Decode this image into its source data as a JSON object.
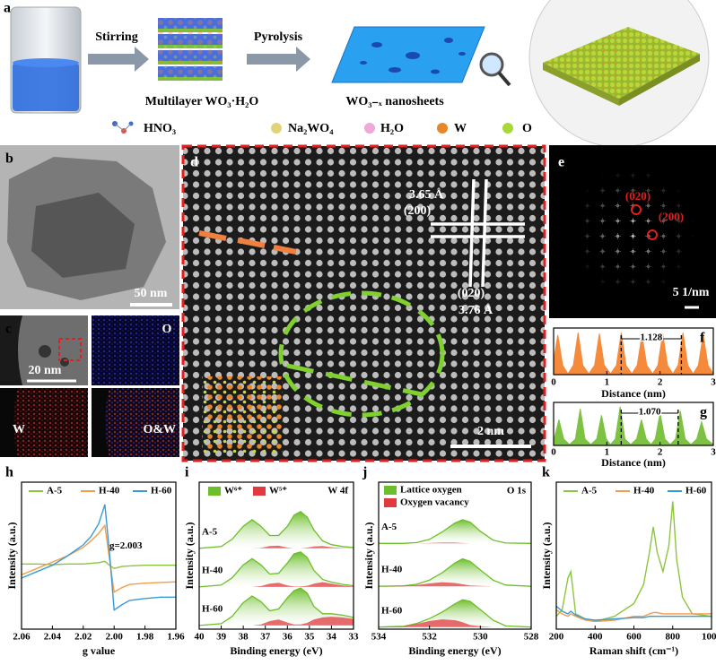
{
  "schematic": {
    "label": "a",
    "step1": "Stirring",
    "step2": "Pyrolysis",
    "product1": "Multilayer WO₃·H₂O",
    "product2": "WO₃₋ₓ nanosheets",
    "legend": [
      "HNO₃",
      "Na₂WO₄",
      "H₂O",
      "W",
      "O"
    ]
  },
  "tem": {
    "label": "b",
    "scale": "50 nm"
  },
  "mapping": {
    "label": "c",
    "o": "O",
    "scale": "20 nm",
    "w": "W",
    "ow": "O&W"
  },
  "hrtem": {
    "label": "d",
    "d200": "3.65 Å",
    "h200": "(200)",
    "h020": "(020)",
    "d020": "3.76 Å",
    "scale": "2 nm"
  },
  "fft": {
    "label": "e",
    "s020": "(020)",
    "s200": "(200)",
    "scale": "5 1/nm"
  },
  "chart_data": [
    {
      "label": "f",
      "type": "area",
      "xlabel": "Distance (nm)",
      "xlim": [
        0,
        3
      ],
      "xticks": [
        0,
        1,
        2,
        3
      ],
      "ylim": [
        0,
        1
      ],
      "x": [
        0,
        0.08,
        0.17,
        0.27,
        0.37,
        0.46,
        0.55,
        0.66,
        0.77,
        0.86,
        0.95,
        1.07,
        1.18,
        1.27,
        1.36,
        1.47,
        1.57,
        1.66,
        1.75,
        1.86,
        1.96,
        2.05,
        2.14,
        2.24,
        2.34,
        2.43,
        2.52,
        2.62,
        2.72,
        2.81,
        2.9,
        3.0
      ],
      "series": [
        {
          "color": "#f58a3c",
          "values": [
            0.3,
            0.85,
            0.2,
            0.02,
            0.2,
            0.9,
            0.2,
            0.02,
            0.2,
            0.88,
            0.2,
            0.02,
            0.2,
            0.9,
            0.2,
            0.02,
            0.2,
            0.85,
            0.2,
            0.02,
            0.2,
            0.88,
            0.2,
            0.02,
            0.2,
            0.9,
            0.2,
            0.02,
            0.2,
            0.86,
            0.2,
            0.02
          ]
        }
      ],
      "marker": {
        "from": 1.27,
        "to": 2.4,
        "distance": 1.128
      }
    },
    {
      "label": "g",
      "type": "area",
      "xlabel": "Distance (nm)",
      "xlim": [
        0,
        3
      ],
      "xticks": [
        0,
        1,
        2,
        3
      ],
      "ylim": [
        0,
        1
      ],
      "x": [
        0,
        0.1,
        0.19,
        0.3,
        0.41,
        0.5,
        0.59,
        0.7,
        0.81,
        0.9,
        0.99,
        1.07,
        1.16,
        1.25,
        1.34,
        1.45,
        1.56,
        1.65,
        1.74,
        1.83,
        1.91,
        2.0,
        2.09,
        2.19,
        2.29,
        2.38,
        2.47,
        2.58,
        2.69,
        2.78,
        2.87,
        3.0
      ],
      "series": [
        {
          "color": "#7dc242",
          "values": [
            0.1,
            0.6,
            0.15,
            0.02,
            0.15,
            0.85,
            0.15,
            0.02,
            0.15,
            0.7,
            0.15,
            0.02,
            0.15,
            0.9,
            0.15,
            0.02,
            0.15,
            0.6,
            0.15,
            0.02,
            0.15,
            0.75,
            0.15,
            0.02,
            0.15,
            0.8,
            0.15,
            0.02,
            0.15,
            0.55,
            0.15,
            0.02
          ]
        }
      ],
      "marker": {
        "from": 1.27,
        "to": 2.34,
        "distance": {
          "value": 1.07,
          "label": "1.070"
        }
      }
    },
    {
      "label": "h",
      "type": "line",
      "xlabel": "g value",
      "ylabel": "Intensity (a.u.)",
      "xlim": [
        2.06,
        1.96
      ],
      "xticks": [
        2.06,
        2.04,
        2.02,
        {
          "value": 2,
          "label": "2.00"
        },
        1.98,
        1.96
      ],
      "ylim": [
        -1,
        1.3
      ],
      "annotation": "g=2.003",
      "x": [
        2.06,
        2.05,
        2.04,
        2.03,
        2.02,
        2.015,
        2.01,
        2.006,
        2.003,
        2.0,
        1.995,
        1.99,
        1.98,
        1.97,
        1.96
      ],
      "series": [
        {
          "name": "A-5",
          "color": "#8cc63f",
          "values": [
            0.02,
            0.02,
            0.01,
            0.02,
            0.02,
            0.03,
            0.04,
            0.06,
            0,
            -0.05,
            -0.02,
            -0.01,
            0,
            0,
            0
          ]
        },
        {
          "name": "H-40",
          "color": "#f39c4a",
          "values": [
            -0.15,
            -0.05,
            0.05,
            0.15,
            0.28,
            0.38,
            0.5,
            0.62,
            0.1,
            -0.42,
            -0.35,
            -0.3,
            -0.28,
            -0.27,
            -0.26
          ]
        },
        {
          "name": "H-60",
          "color": "#3a9ad9",
          "values": [
            -0.2,
            -0.1,
            0,
            0.15,
            0.32,
            0.45,
            0.65,
            0.95,
            0.2,
            -0.7,
            -0.62,
            -0.55,
            -0.52,
            -0.5,
            -0.5
          ]
        }
      ]
    },
    {
      "label": "i",
      "type": "fit",
      "xlabel": "Binding energy (eV)",
      "ylabel": "Intensity (a.u.)",
      "xlim": [
        40,
        33
      ],
      "xticks": [
        40,
        39,
        38,
        37,
        36,
        35,
        34,
        33
      ],
      "ylim": [
        0,
        4
      ],
      "annotation": "W 4f",
      "legend": [
        {
          "name": "W⁶⁺",
          "color": "#6cbf2a"
        },
        {
          "name": "W⁵⁺",
          "color": "#e0393e"
        }
      ],
      "x": [
        40,
        39,
        38.5,
        38,
        37.6,
        37.2,
        36.8,
        36.4,
        36,
        35.7,
        35.4,
        35.1,
        34.8,
        34.4,
        34,
        33.5,
        33
      ],
      "samples": [
        {
          "name": "A-5",
          "values": [
            2.2,
            2.25,
            2.45,
            2.8,
            2.98,
            2.8,
            2.55,
            2.55,
            2.8,
            3.1,
            3.2,
            3.05,
            2.7,
            2.4,
            2.3,
            2.25,
            2.22
          ],
          "minor": [
            2.2,
            2.2,
            2.2,
            2.2,
            2.2,
            2.21,
            2.26,
            2.27,
            2.22,
            2.2,
            2.2,
            2.22,
            2.25,
            2.26,
            2.23,
            2.21,
            2.2
          ]
        },
        {
          "name": "H-40",
          "values": [
            1.15,
            1.2,
            1.4,
            1.75,
            1.92,
            1.75,
            1.5,
            1.52,
            1.8,
            2.05,
            2.1,
            1.95,
            1.6,
            1.35,
            1.28,
            1.22,
            1.18
          ],
          "minor": [
            1.15,
            1.15,
            1.15,
            1.15,
            1.15,
            1.17,
            1.24,
            1.26,
            1.19,
            1.16,
            1.16,
            1.18,
            1.24,
            1.28,
            1.24,
            1.19,
            1.16
          ]
        },
        {
          "name": "H-60",
          "values": [
            0.1,
            0.15,
            0.35,
            0.72,
            0.9,
            0.75,
            0.5,
            0.55,
            0.85,
            1.05,
            1.12,
            0.98,
            0.62,
            0.42,
            0.42,
            0.38,
            0.32
          ],
          "minor": [
            0.1,
            0.1,
            0.1,
            0.1,
            0.1,
            0.13,
            0.22,
            0.26,
            0.18,
            0.13,
            0.13,
            0.17,
            0.26,
            0.32,
            0.34,
            0.32,
            0.28
          ]
        }
      ]
    },
    {
      "label": "j",
      "type": "fit",
      "xlabel": "Binding energy (eV)",
      "ylabel": "Intensity (a.u.)",
      "xlim": [
        534,
        528
      ],
      "xticks": [
        534,
        532,
        530,
        528
      ],
      "ylim": [
        0,
        3.6
      ],
      "annotation": "O 1s",
      "legend": [
        {
          "name": "Lattice oxygen",
          "color": "#6cbf2a"
        },
        {
          "name": "Oxygen vacancy",
          "color": "#e0393e"
        }
      ],
      "x": [
        534,
        533,
        532.5,
        532,
        531.5,
        531,
        530.7,
        530.4,
        530,
        529.5,
        529,
        528
      ],
      "samples": [
        {
          "name": "A-5",
          "values": [
            2.1,
            2.1,
            2.12,
            2.2,
            2.38,
            2.6,
            2.68,
            2.62,
            2.4,
            2.18,
            2.11,
            2.1
          ],
          "minor": [
            2.1,
            2.1,
            2.1,
            2.11,
            2.12,
            2.12,
            2.11,
            2.1,
            2.1,
            2.1,
            2.1,
            2.1
          ]
        },
        {
          "name": "H-40",
          "values": [
            1.05,
            1.06,
            1.1,
            1.2,
            1.38,
            1.62,
            1.72,
            1.66,
            1.45,
            1.2,
            1.08,
            1.05
          ],
          "minor": [
            1.05,
            1.06,
            1.08,
            1.12,
            1.15,
            1.13,
            1.1,
            1.07,
            1.06,
            1.05,
            1.05,
            1.05
          ]
        },
        {
          "name": "H-60",
          "values": [
            0.05,
            0.07,
            0.14,
            0.26,
            0.42,
            0.62,
            0.72,
            0.68,
            0.48,
            0.22,
            0.08,
            0.05
          ],
          "minor": [
            0.05,
            0.07,
            0.13,
            0.2,
            0.24,
            0.22,
            0.17,
            0.1,
            0.07,
            0.05,
            0.05,
            0.05
          ]
        }
      ]
    },
    {
      "label": "k",
      "type": "line",
      "xlabel": "Raman shift (cm⁻¹)",
      "ylabel": "Intensity (a.u.)",
      "xlim": [
        200,
        1000
      ],
      "xticks": [
        200,
        400,
        600,
        800,
        1000
      ],
      "ylim": [
        0,
        1.15
      ],
      "x": [
        200,
        230,
        260,
        275,
        300,
        350,
        400,
        500,
        600,
        650,
        680,
        700,
        720,
        750,
        780,
        800,
        820,
        850,
        900,
        1000
      ],
      "series": [
        {
          "name": "A-5",
          "color": "#8cc63f",
          "values": [
            0.1,
            0.15,
            0.4,
            0.45,
            0.12,
            0.08,
            0.06,
            0.1,
            0.2,
            0.35,
            0.6,
            0.8,
            0.6,
            0.45,
            0.65,
            1.0,
            0.55,
            0.25,
            0.12,
            0.1
          ]
        },
        {
          "name": "H-40",
          "color": "#f39c4a",
          "values": [
            0.15,
            0.12,
            0.1,
            0.12,
            0.1,
            0.07,
            0.06,
            0.07,
            0.1,
            0.1,
            0.12,
            0.13,
            0.13,
            0.12,
            0.12,
            0.12,
            0.12,
            0.12,
            0.12,
            0.12
          ]
        },
        {
          "name": "H-60",
          "color": "#3a9ad9",
          "values": [
            0.18,
            0.14,
            0.12,
            0.14,
            0.11,
            0.08,
            0.07,
            0.08,
            0.09,
            0.09,
            0.1,
            0.1,
            0.1,
            0.1,
            0.1,
            0.1,
            0.1,
            0.1,
            0.1,
            0.1
          ]
        }
      ]
    }
  ]
}
